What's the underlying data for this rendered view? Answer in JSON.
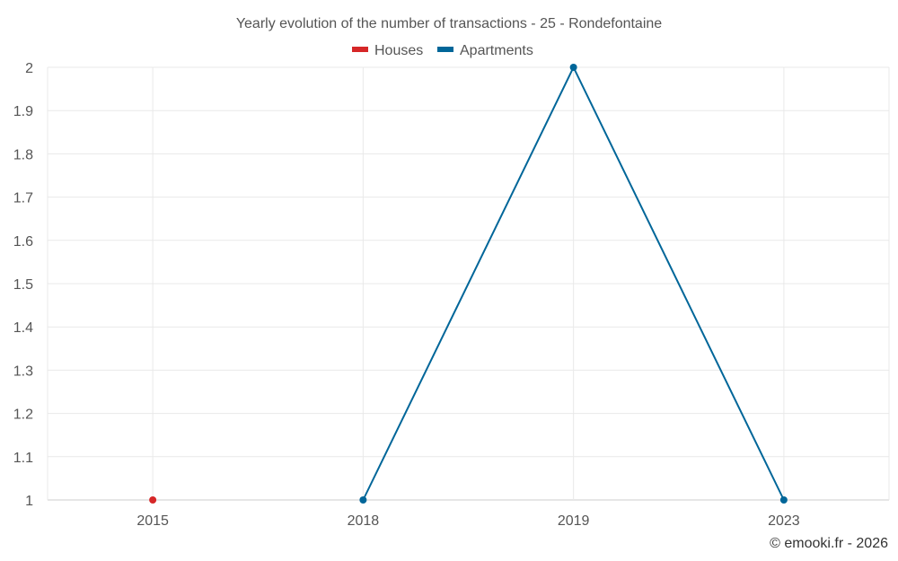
{
  "chart_data": {
    "type": "line",
    "title": "Yearly evolution of the number of transactions - 25 - Rondefontaine",
    "categories": [
      "2015",
      "2018",
      "2019",
      "2023"
    ],
    "y_ticks": [
      "1",
      "1.1",
      "1.2",
      "1.3",
      "1.4",
      "1.5",
      "1.6",
      "1.7",
      "1.8",
      "1.9",
      "2"
    ],
    "ylim": [
      1,
      2
    ],
    "grid": true,
    "legend_position": "top-center",
    "series": [
      {
        "name": "Houses",
        "color": "#d62728",
        "values": [
          1,
          null,
          null,
          null
        ]
      },
      {
        "name": "Apartments",
        "color": "#006699",
        "values": [
          null,
          1,
          2,
          1
        ]
      }
    ]
  },
  "credit": "© emooki.fr - 2026"
}
